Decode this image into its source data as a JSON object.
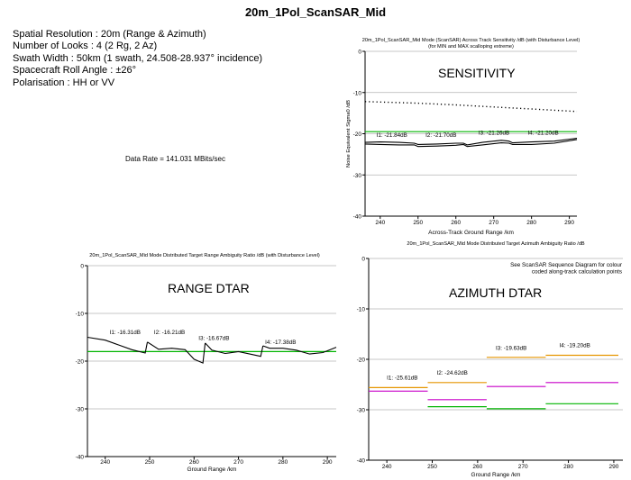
{
  "page_title": "20m_1Pol_ScanSAR_Mid",
  "params": [
    "Spatial Resolution  : 20m (Range & Azimuth)",
    "Number of Looks : 4 (2 Rg, 2 Az)",
    "Swath Width : 50km  (1 swath, 24.508-28.937° incidence)",
    "Spacecraft Roll Angle  : ±26°",
    "Polarisation : HH or VV"
  ],
  "data_rate": "Data Rate = 141.031 MBits/sec",
  "colors": {
    "axis": "#000000",
    "grid": "#b4b4b4",
    "green": "#00b400",
    "orange": "#e69600",
    "magenta": "#c800c8",
    "curve": "#000000"
  },
  "chart_data": [
    {
      "id": "sensitivity",
      "type": "line",
      "title": "20m_1Pol_ScanSAR_Mid Mode (ScanSAR) Across Track Sensitivity /dB (with Disturbance Level)",
      "subtitle": "(for MIN and MAX scalloping extreme)",
      "overlay_label": "SENSITIVITY",
      "xlabel": "Across-Track Ground Range /km",
      "ylabel": "Noise Equivalent Sigma0 /dB",
      "xlim": [
        236,
        292
      ],
      "ylim": [
        -40,
        0
      ],
      "xticks": [
        240,
        250,
        260,
        270,
        280,
        290
      ],
      "yticks": [
        0,
        -10,
        -20,
        -30,
        -40
      ],
      "grid": true,
      "series": [
        {
          "style": "dotted",
          "color": "black",
          "x": [
            236,
            250,
            260,
            270,
            280,
            292
          ],
          "y": [
            -12.2,
            -12.6,
            -13.0,
            -13.5,
            -14.0,
            -14.6
          ]
        },
        {
          "style": "solid",
          "color": "green",
          "x": [
            236,
            292
          ],
          "y": [
            -19.5,
            -19.5
          ]
        },
        {
          "style": "solid",
          "color": "black",
          "x": [
            236,
            240,
            245,
            249,
            250,
            255,
            260,
            262,
            263,
            267,
            272,
            274,
            275,
            280,
            286,
            292
          ],
          "y": [
            -22.1,
            -22.0,
            -22.1,
            -22.3,
            -22.6,
            -22.5,
            -22.3,
            -22.3,
            -22.7,
            -22.1,
            -21.6,
            -21.8,
            -22.2,
            -22.0,
            -21.8,
            -21.1
          ]
        },
        {
          "style": "solid",
          "color": "black",
          "x": [
            236,
            240,
            245,
            249,
            250,
            255,
            260,
            262,
            263,
            267,
            272,
            274,
            275,
            280,
            286,
            292
          ],
          "y": [
            -22.5,
            -22.6,
            -22.7,
            -22.7,
            -23.1,
            -23.0,
            -22.8,
            -22.6,
            -23.1,
            -22.7,
            -22.2,
            -22.3,
            -22.6,
            -22.6,
            -22.3,
            -21.4
          ]
        }
      ],
      "annotations": [
        {
          "text": "I1: -21.84dB",
          "x": 239,
          "y": -20.8
        },
        {
          "text": "I2: -21.70dB",
          "x": 252,
          "y": -20.8
        },
        {
          "text": "I3: -21.26dB",
          "x": 266,
          "y": -20.2
        },
        {
          "text": "I4: -21.20dB",
          "x": 279,
          "y": -20.2
        }
      ]
    },
    {
      "id": "range_dtar",
      "type": "line",
      "title": "20m_1Pol_ScanSAR_Mid Mode Distributed Target Range Ambiguity Ratio /dB (with Disturbance Level)",
      "overlay_label": "RANGE DTAR",
      "xlabel": "Ground Range /km",
      "ylabel": "",
      "xlim": [
        236,
        292
      ],
      "ylim": [
        -40,
        0
      ],
      "xticks": [
        240,
        250,
        260,
        270,
        280,
        290
      ],
      "yticks": [
        0,
        -10,
        -20,
        -30,
        -40
      ],
      "grid": true,
      "series": [
        {
          "style": "solid",
          "color": "green",
          "x": [
            236,
            292
          ],
          "y": [
            -18.0,
            -18.0
          ]
        },
        {
          "style": "solid",
          "color": "black",
          "x": [
            236,
            240,
            243,
            246,
            249,
            249.5
          ],
          "y": [
            -15.0,
            -15.6,
            -16.6,
            -17.6,
            -18.3,
            -16.0
          ]
        },
        {
          "style": "solid",
          "color": "black",
          "x": [
            249.5,
            252,
            255,
            258,
            260,
            262,
            262.5
          ],
          "y": [
            -16.0,
            -17.5,
            -17.3,
            -17.6,
            -19.6,
            -20.4,
            -16.2
          ]
        },
        {
          "style": "solid",
          "color": "black",
          "x": [
            262.5,
            264,
            267,
            270,
            273,
            275,
            275.5
          ],
          "y": [
            -16.2,
            -17.7,
            -18.4,
            -18.0,
            -18.6,
            -19.0,
            -16.8
          ]
        },
        {
          "style": "solid",
          "color": "black",
          "x": [
            275.5,
            277,
            280,
            283,
            286,
            289,
            292
          ],
          "y": [
            -16.8,
            -17.3,
            -17.3,
            -17.7,
            -18.5,
            -18.2,
            -17.1
          ]
        }
      ],
      "annotations": [
        {
          "text": "I1: -16.31dB",
          "x": 241,
          "y": -14.3
        },
        {
          "text": "I2: -16.21dB",
          "x": 251,
          "y": -14.3
        },
        {
          "text": "I3: -16.67dB",
          "x": 261,
          "y": -15.6
        },
        {
          "text": "I4: -17.38dB",
          "x": 276,
          "y": -16.4
        }
      ]
    },
    {
      "id": "azimuth_dtar",
      "type": "line",
      "title": "20m_1Pol_ScanSAR_Mid Mode Distributed Target Azimuth Ambiguity Ratio /dB",
      "overlay_label": "AZIMUTH DTAR",
      "note": [
        "See ScanSAR Sequence Diagram for colour",
        "coded along-track calculation points"
      ],
      "xlabel": "Ground Range /km",
      "ylabel": "",
      "xlim": [
        236,
        292
      ],
      "ylim": [
        -40,
        0
      ],
      "xticks": [
        240,
        250,
        260,
        270,
        280,
        290
      ],
      "yticks": [
        0,
        -10,
        -20,
        -30,
        -40
      ],
      "grid": true,
      "series": [
        {
          "style": "solid",
          "color": "orange",
          "x": [
            236,
            249
          ],
          "y": [
            -25.6,
            -25.6
          ]
        },
        {
          "style": "solid",
          "color": "orange",
          "x": [
            249,
            262
          ],
          "y": [
            -24.6,
            -24.6
          ]
        },
        {
          "style": "solid",
          "color": "orange",
          "x": [
            262,
            275
          ],
          "y": [
            -19.6,
            -19.6
          ]
        },
        {
          "style": "solid",
          "color": "orange",
          "x": [
            275,
            291
          ],
          "y": [
            -19.2,
            -19.2
          ]
        },
        {
          "style": "solid",
          "color": "magenta",
          "x": [
            236,
            249
          ],
          "y": [
            -26.3,
            -26.3
          ]
        },
        {
          "style": "solid",
          "color": "magenta",
          "x": [
            249,
            262
          ],
          "y": [
            -28.0,
            -28.0
          ]
        },
        {
          "style": "solid",
          "color": "magenta",
          "x": [
            262,
            275
          ],
          "y": [
            -25.4,
            -25.4
          ]
        },
        {
          "style": "solid",
          "color": "magenta",
          "x": [
            275,
            291
          ],
          "y": [
            -24.6,
            -24.6
          ]
        },
        {
          "style": "solid",
          "color": "green",
          "x": [
            249,
            262
          ],
          "y": [
            -29.4,
            -29.4
          ]
        },
        {
          "style": "solid",
          "color": "green",
          "x": [
            262,
            275
          ],
          "y": [
            -29.8,
            -29.8
          ]
        },
        {
          "style": "solid",
          "color": "green",
          "x": [
            275,
            291
          ],
          "y": [
            -28.8,
            -28.8
          ]
        }
      ],
      "annotations": [
        {
          "text": "I1: -25.61dB",
          "x": 240,
          "y": -24.0
        },
        {
          "text": "I2: -24.62dB",
          "x": 251,
          "y": -23.0
        },
        {
          "text": "I3: -19.63dB",
          "x": 264,
          "y": -18.1
        },
        {
          "text": "I4: -19.20dB",
          "x": 278,
          "y": -17.6
        }
      ]
    }
  ]
}
